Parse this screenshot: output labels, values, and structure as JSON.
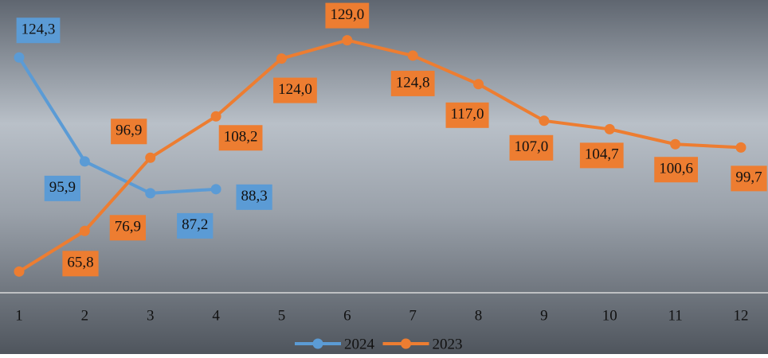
{
  "chart_data": {
    "type": "line",
    "categories": [
      "1",
      "2",
      "3",
      "4",
      "5",
      "6",
      "7",
      "8",
      "9",
      "10",
      "11",
      "12"
    ],
    "series": [
      {
        "name": "2024",
        "color": "#5b9bd5",
        "values": [
          124.3,
          95.9,
          87.2,
          88.3,
          null,
          null,
          null,
          null,
          null,
          null,
          null,
          null
        ],
        "value_labels": [
          "124,3",
          "95,9",
          "87,2",
          "88,3",
          null,
          null,
          null,
          null,
          null,
          null,
          null,
          null
        ]
      },
      {
        "name": "2023",
        "color": "#ed7d31",
        "values": [
          65.8,
          76.9,
          96.9,
          108.2,
          124.0,
          129.0,
          124.8,
          117.0,
          107.0,
          104.7,
          100.6,
          99.7
        ],
        "value_labels": [
          "65,8",
          "76,9",
          "96,9",
          "108,2",
          "124,0",
          "129,0",
          "124,8",
          "117,0",
          "107,0",
          "104,7",
          "100,6",
          "99,7"
        ]
      }
    ],
    "ylim": [
      60,
      140
    ],
    "legend": "bottom"
  }
}
